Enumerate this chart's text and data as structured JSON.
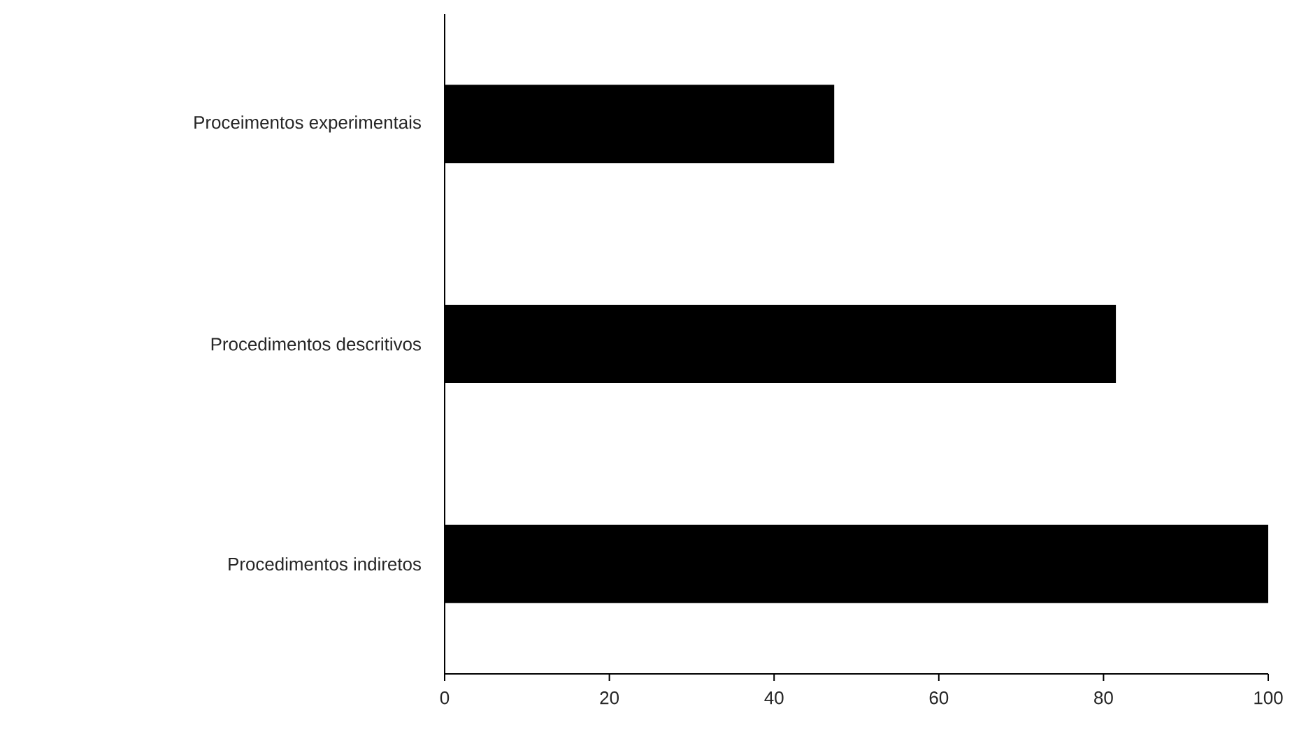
{
  "chart_data": {
    "type": "bar",
    "orientation": "horizontal",
    "categories": [
      "Proceimentos experimentais",
      "Procedimentos descritivos",
      "Procedimentos indiretos"
    ],
    "values": [
      47.3,
      81.5,
      100
    ],
    "color": "#000000",
    "xlim": [
      0,
      100
    ],
    "xticks": [
      0,
      20,
      40,
      60,
      80,
      100
    ]
  }
}
